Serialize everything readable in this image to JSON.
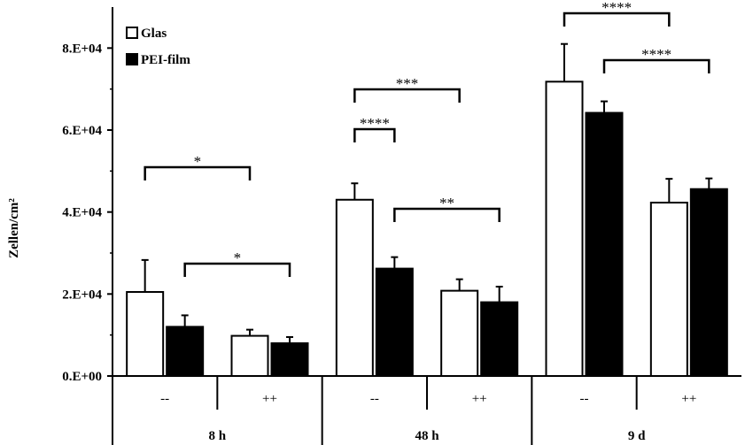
{
  "chart_data": {
    "type": "bar",
    "ylabel": "Zellen/cm²",
    "ylim": [
      0,
      90000
    ],
    "yticks": [
      0,
      20000,
      40000,
      60000,
      80000
    ],
    "ytick_labels": [
      "0.E+00",
      "2.E+04",
      "4.E+04",
      "6.E+04",
      "8.E+04"
    ],
    "legend_position": "top-left",
    "groups": [
      {
        "label": "8 h",
        "conditions": [
          "--",
          "++"
        ]
      },
      {
        "label": "48 h",
        "conditions": [
          "--",
          "++"
        ]
      },
      {
        "label": "9 d",
        "conditions": [
          "--",
          "++"
        ]
      }
    ],
    "categories": [
      "8 h --",
      "8 h ++",
      "48 h --",
      "48 h ++",
      "9 d --",
      "9 d ++"
    ],
    "series": [
      {
        "name": "Glas",
        "color": "#ffffff",
        "values": [
          20500,
          9800,
          43000,
          20800,
          71800,
          42300
        ],
        "errors": [
          7800,
          1500,
          4000,
          2800,
          9200,
          5800
        ]
      },
      {
        "name": "PEI-film",
        "color": "#000000",
        "values": [
          12000,
          8000,
          26200,
          18000,
          64200,
          45600
        ],
        "errors": [
          2800,
          1500,
          2800,
          3800,
          2800,
          2600
        ]
      }
    ],
    "significance": [
      {
        "from": [
          0,
          0
        ],
        "to": [
          1,
          0
        ],
        "label": "*"
      },
      {
        "from": [
          0,
          1
        ],
        "to": [
          1,
          1
        ],
        "label": "*"
      },
      {
        "from": [
          2,
          0
        ],
        "to": [
          3,
          0
        ],
        "label": "***"
      },
      {
        "from": [
          2,
          0
        ],
        "to": [
          2,
          1
        ],
        "label": "****"
      },
      {
        "from": [
          2,
          1
        ],
        "to": [
          3,
          1
        ],
        "label": "**"
      },
      {
        "from": [
          4,
          0
        ],
        "to": [
          5,
          0
        ],
        "label": "****"
      },
      {
        "from": [
          4,
          1
        ],
        "to": [
          5,
          1
        ],
        "label": "****"
      }
    ]
  }
}
